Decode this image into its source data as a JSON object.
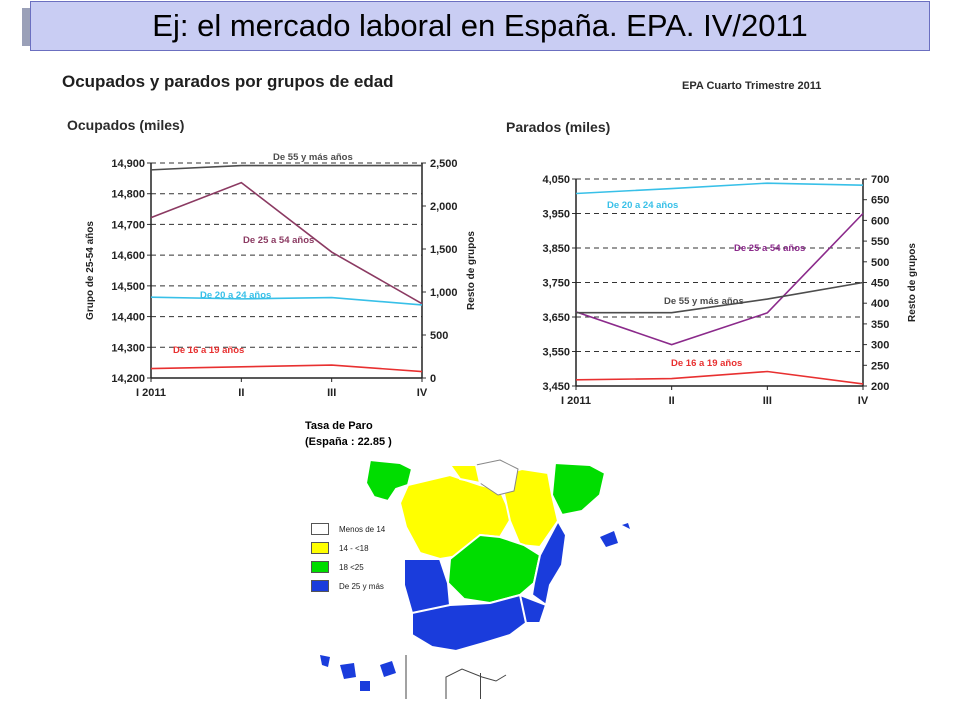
{
  "slide": {
    "title": "Ej: el mercado laboral en España. EPA. IV/2011",
    "heading": "Ocupados y parados por grupos de edad",
    "source": "EPA   Cuarto Trimestre 2011"
  },
  "chart_data": [
    {
      "type": "line",
      "title": "Ocupados (miles)",
      "categories": [
        "I   2011",
        "II",
        "III",
        "IV"
      ],
      "ylabel": "Grupo de 25-54 años",
      "y2label": "Resto de grupos",
      "ylim": [
        14200,
        14900
      ],
      "yticks": [
        "14,200",
        "14,300",
        "14,400",
        "14,500",
        "14,600",
        "14,700",
        "14,800",
        "14,900"
      ],
      "y2lim": [
        0,
        2500
      ],
      "y2ticks": [
        "0",
        "500",
        "1,000",
        "1,500",
        "2,000",
        "2,500"
      ],
      "grid": "dashed horizontal",
      "series": [
        {
          "name": "De 55 y más años",
          "axis": "right",
          "color": "#4d4d4d",
          "values": [
            2420,
            2470,
            2470,
            2470
          ]
        },
        {
          "name": "De 25 a 54 años",
          "axis": "left",
          "color": "#8b3a62",
          "values": [
            14722,
            14836,
            14610,
            14442
          ]
        },
        {
          "name": "De 20 a 24 años",
          "axis": "right",
          "color": "#38c0e8",
          "values": [
            940,
            920,
            935,
            850
          ]
        },
        {
          "name": "De 16 a 19 años",
          "axis": "right",
          "color": "#e83030",
          "values": [
            110,
            130,
            150,
            75
          ]
        }
      ]
    },
    {
      "type": "line",
      "title": "Parados (miles)",
      "categories": [
        "I   2011",
        "II",
        "III",
        "IV"
      ],
      "ylabel": "Grupo de 25-54 años",
      "y2label": "Resto de grupos",
      "ylim": [
        3450,
        4050
      ],
      "yticks": [
        "3,450",
        "3,550",
        "3,650",
        "3,750",
        "3,850",
        "3,950",
        "4,050"
      ],
      "y2lim": [
        200,
        700
      ],
      "y2ticks": [
        "200",
        "250",
        "300",
        "350",
        "400",
        "450",
        "500",
        "550",
        "600",
        "650",
        "700"
      ],
      "grid": "dashed horizontal",
      "series": [
        {
          "name": "De 20 a 24 años",
          "axis": "right",
          "color": "#38c0e8",
          "values": [
            665,
            677,
            690,
            685
          ]
        },
        {
          "name": "De 25 a 54 años",
          "axis": "left",
          "color": "#8b2a8b",
          "values": [
            3665,
            3570,
            3662,
            3950
          ]
        },
        {
          "name": "De 55 y más años",
          "axis": "right",
          "color": "#4d4d4d",
          "values": [
            377,
            377,
            410,
            450
          ]
        },
        {
          "name": "De 16 a 19 años",
          "axis": "right",
          "color": "#e83030",
          "values": [
            215,
            218,
            235,
            205
          ]
        }
      ]
    }
  ],
  "map": {
    "title": "Tasa de Paro",
    "national": "(España :   22.85   )",
    "legend": [
      {
        "label": "Menos de 14",
        "color": "#ffffff"
      },
      {
        "label": "14 - <18",
        "color": "#ffff00"
      },
      {
        "label": "18 <25",
        "color": "#00dd00"
      },
      {
        "label": "De 25 y más",
        "color": "#1a3cdc"
      }
    ]
  }
}
